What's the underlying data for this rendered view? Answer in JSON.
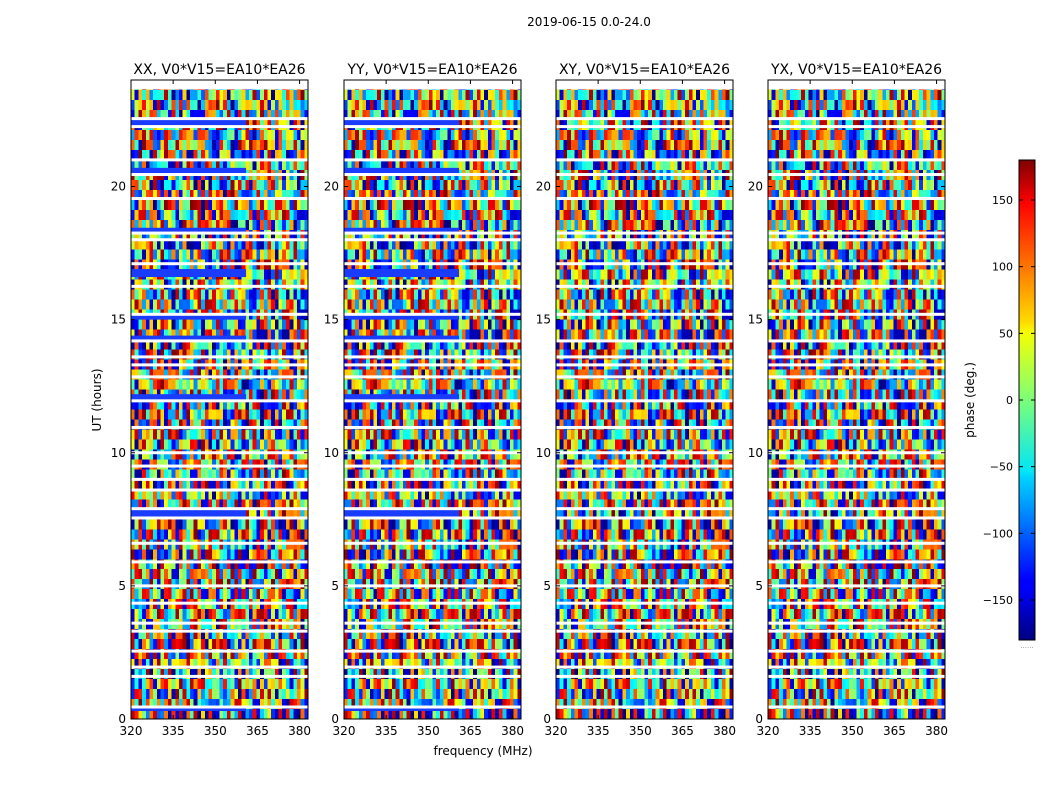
{
  "chart_data": {
    "type": "heatmap",
    "title": "2019-06-15 0.0-24.0",
    "xlabel": "frequency (MHz)",
    "ylabel": "UT (hours)",
    "xlim": [
      320,
      383
    ],
    "ylim": [
      0,
      24
    ],
    "xticks": [
      320,
      335,
      350,
      365,
      380
    ],
    "yticks": [
      0,
      5,
      10,
      15,
      20
    ],
    "panels": [
      {
        "title": "XX, V0*V15=EA10*EA26",
        "polarization": "XX"
      },
      {
        "title": "YY, V0*V15=EA10*EA26",
        "polarization": "YY"
      },
      {
        "title": "XY, V0*V15=EA10*EA26",
        "polarization": "XY"
      },
      {
        "title": "YX, V0*V15=EA10*EA26",
        "polarization": "YX"
      }
    ],
    "colorbar": {
      "label": "phase (deg.)",
      "range": [
        -180,
        180
      ],
      "ticks": [
        -150,
        -100,
        -50,
        0,
        50,
        100,
        150
      ],
      "colormap": "jet",
      "footer": "......"
    },
    "flagged_ut_hours": [
      0.45,
      1.6,
      1.95,
      2.55,
      3.3,
      3.6,
      4.35,
      5.0,
      5.9,
      6.6,
      7.55,
      7.9,
      8.6,
      9.0,
      9.5,
      10.0,
      10.95,
      11.95,
      12.85,
      13.3,
      13.6,
      14.2,
      15.2,
      16.25,
      17.1,
      18.0,
      18.25,
      19.55,
      20.45,
      21.0,
      22.25,
      22.55,
      23.7
    ],
    "blue_band_ut_hours": [
      {
        "t0": 0.3,
        "t1": 0.45,
        "panels": [
          "XX",
          "YY"
        ]
      },
      {
        "t0": 2.5,
        "t1": 2.6,
        "panels": [
          "YY"
        ]
      },
      {
        "t0": 7.6,
        "t1": 7.85,
        "panels": [
          "XX",
          "YY"
        ]
      },
      {
        "t0": 11.9,
        "t1": 12.2,
        "panels": [
          "XX",
          "YY"
        ]
      },
      {
        "t0": 14.2,
        "t1": 14.4,
        "panels": [
          "XX",
          "YY"
        ]
      },
      {
        "t0": 15.0,
        "t1": 15.2,
        "panels": [
          "XX",
          "YY"
        ]
      },
      {
        "t0": 16.6,
        "t1": 16.9,
        "panels": [
          "XX",
          "YY"
        ]
      },
      {
        "t0": 18.3,
        "t1": 18.45,
        "panels": [
          "XX",
          "YY"
        ]
      },
      {
        "t0": 20.5,
        "t1": 20.7,
        "panels": [
          "XX",
          "YY"
        ]
      },
      {
        "t0": 22.3,
        "t1": 22.6,
        "panels": [
          "XX",
          "YY"
        ]
      }
    ]
  }
}
